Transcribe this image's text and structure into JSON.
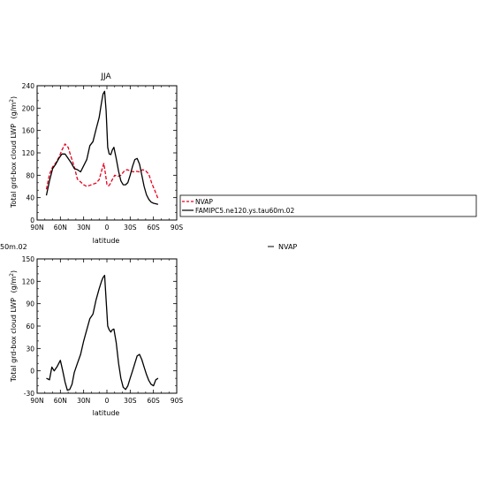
{
  "chart_data": [
    {
      "type": "line",
      "title": "JJA",
      "xlabel": "latitude",
      "ylabel_main": "Total grd-box cloud LWP",
      "ylabel_units": "(g/m",
      "ylabel_sup": "2",
      "ylabel_close": ")",
      "xlim": [
        90,
        -90
      ],
      "ylim": [
        0,
        240
      ],
      "xticks": [
        90,
        60,
        30,
        0,
        -30,
        -60,
        -90
      ],
      "xtick_labels": [
        "90N",
        "60N",
        "30N",
        "0",
        "30S",
        "60S",
        "90S"
      ],
      "yticks": [
        0,
        40,
        80,
        120,
        160,
        200,
        240
      ],
      "ytick_labels": [
        "0",
        "40",
        "80",
        "120",
        "160",
        "200",
        "240"
      ],
      "grid": false,
      "legend_position": "right",
      "series": [
        {
          "name": "NVAP",
          "color": "#e8001c",
          "dash": "dashed",
          "x": [
            78,
            74,
            70,
            66,
            62,
            58,
            54,
            50,
            46,
            42,
            38,
            34,
            30,
            26,
            22,
            18,
            14,
            10,
            6,
            4,
            2,
            0,
            -2,
            -4,
            -6,
            -10,
            -14,
            -18,
            -22,
            -26,
            -30,
            -34,
            -38,
            -42,
            -46,
            -50,
            -54,
            -58,
            -62,
            -66
          ],
          "y": [
            55,
            82,
            95,
            102,
            112,
            125,
            136,
            130,
            112,
            95,
            73,
            68,
            63,
            60,
            62,
            64,
            66,
            72,
            92,
            101,
            84,
            64,
            61,
            64,
            70,
            80,
            78,
            80,
            87,
            90,
            88,
            86,
            87,
            86,
            90,
            88,
            82,
            65,
            52,
            38
          ]
        },
        {
          "name": "FAMIPC5.ne120.ys.tau60m.02",
          "color": "#000000",
          "dash": "solid",
          "x": [
            78,
            74,
            70,
            66,
            62,
            58,
            54,
            50,
            46,
            42,
            38,
            34,
            30,
            26,
            22,
            18,
            14,
            10,
            7,
            5,
            3,
            1,
            -1,
            -3,
            -5,
            -7,
            -9,
            -12,
            -15,
            -18,
            -21,
            -24,
            -27,
            -30,
            -33,
            -36,
            -39,
            -42,
            -45,
            -48,
            -51,
            -54,
            -57,
            -60,
            -63,
            -66
          ],
          "y": [
            44,
            70,
            92,
            100,
            110,
            118,
            118,
            110,
            102,
            92,
            90,
            86,
            97,
            108,
            133,
            140,
            162,
            183,
            210,
            225,
            230,
            195,
            130,
            118,
            117,
            125,
            130,
            110,
            87,
            70,
            63,
            63,
            67,
            80,
            96,
            108,
            110,
            100,
            80,
            60,
            45,
            37,
            32,
            30,
            29,
            28
          ]
        }
      ]
    },
    {
      "type": "line",
      "title": "",
      "xlabel": "latitude",
      "ylabel_main": "Total grd-box cloud LWP",
      "ylabel_units": "(g/m",
      "ylabel_sup": "2",
      "ylabel_close": ")",
      "xlim": [
        90,
        -90
      ],
      "ylim": [
        -30,
        150
      ],
      "xticks": [
        90,
        60,
        30,
        0,
        -30,
        -60,
        -90
      ],
      "xtick_labels": [
        "90N",
        "60N",
        "30N",
        "0",
        "30S",
        "60S",
        "90S"
      ],
      "yticks": [
        -30,
        0,
        30,
        60,
        90,
        120,
        150
      ],
      "ytick_labels": [
        "-30",
        "0",
        "30",
        "60",
        "90",
        "120",
        "150"
      ],
      "grid": false,
      "legend_position": "right",
      "series": [
        {
          "name": "50m.02",
          "color": "#000000",
          "dash": "solid",
          "x": [
            78,
            74,
            71,
            68,
            64,
            60,
            57,
            54,
            51,
            48,
            45,
            42,
            38,
            34,
            30,
            26,
            22,
            18,
            14,
            10,
            7,
            5,
            3,
            1,
            -1,
            -3,
            -5,
            -7,
            -9,
            -12,
            -15,
            -18,
            -21,
            -24,
            -27,
            -30,
            -33,
            -36,
            -39,
            -42,
            -45,
            -48,
            -51,
            -54,
            -57,
            -60,
            -63,
            -66
          ],
          "y": [
            -10,
            -12,
            5,
            0,
            6,
            14,
            0,
            -15,
            -26,
            -25,
            -18,
            -2,
            10,
            22,
            40,
            55,
            70,
            76,
            95,
            110,
            120,
            125,
            128,
            95,
            60,
            55,
            52,
            55,
            56,
            38,
            10,
            -10,
            -22,
            -25,
            -20,
            -10,
            0,
            10,
            20,
            22,
            15,
            5,
            -5,
            -13,
            -18,
            -20,
            -12,
            -10
          ]
        }
      ]
    }
  ],
  "page": {
    "left_label_partial": "50m.02",
    "right_legend_label": "NVAP"
  }
}
